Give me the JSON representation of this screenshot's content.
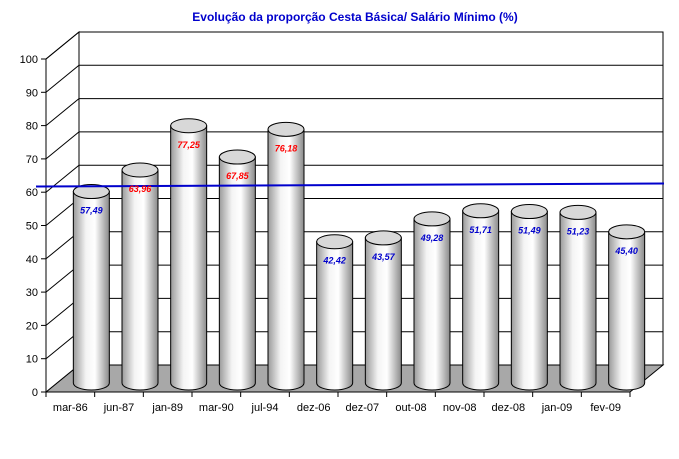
{
  "chart_data": {
    "type": "bar",
    "title": "Evolução da proporção Cesta Básica/ Salário Mínimo (%)",
    "xlabel": "",
    "ylabel": "",
    "ylim": [
      0,
      100
    ],
    "yticks": [
      0,
      10,
      20,
      30,
      40,
      50,
      60,
      70,
      80,
      90,
      100
    ],
    "categories": [
      "mar-86",
      "jun-87",
      "jan-89",
      "mar-90",
      "jul-94",
      "dez-06",
      "dez-07",
      "out-08",
      "nov-08",
      "dez-08",
      "jan-09",
      "fev-09"
    ],
    "values": [
      57.49,
      63.96,
      77.25,
      67.85,
      76.18,
      42.42,
      43.57,
      49.28,
      51.71,
      51.49,
      51.23,
      45.4
    ],
    "value_labels": [
      "57,49",
      "63,96",
      "77,25",
      "67,85",
      "76,18",
      "42,42",
      "43,57",
      "49,28",
      "51,71",
      "51,49",
      "51,23",
      "45,40"
    ],
    "label_colors": [
      "#0000cc",
      "#ff0000",
      "#ff0000",
      "#ff0000",
      "#ff0000",
      "#0000cc",
      "#0000cc",
      "#0000cc",
      "#0000cc",
      "#0000cc",
      "#0000cc",
      "#0000cc"
    ],
    "reference_line": {
      "value": 59,
      "color": "#0000cc"
    },
    "grid": true,
    "bar_style": "3d-cylinder",
    "bar_color": "#d8d8d8",
    "floor_color": "#a8a8a8",
    "title_color": "#0000cc"
  }
}
